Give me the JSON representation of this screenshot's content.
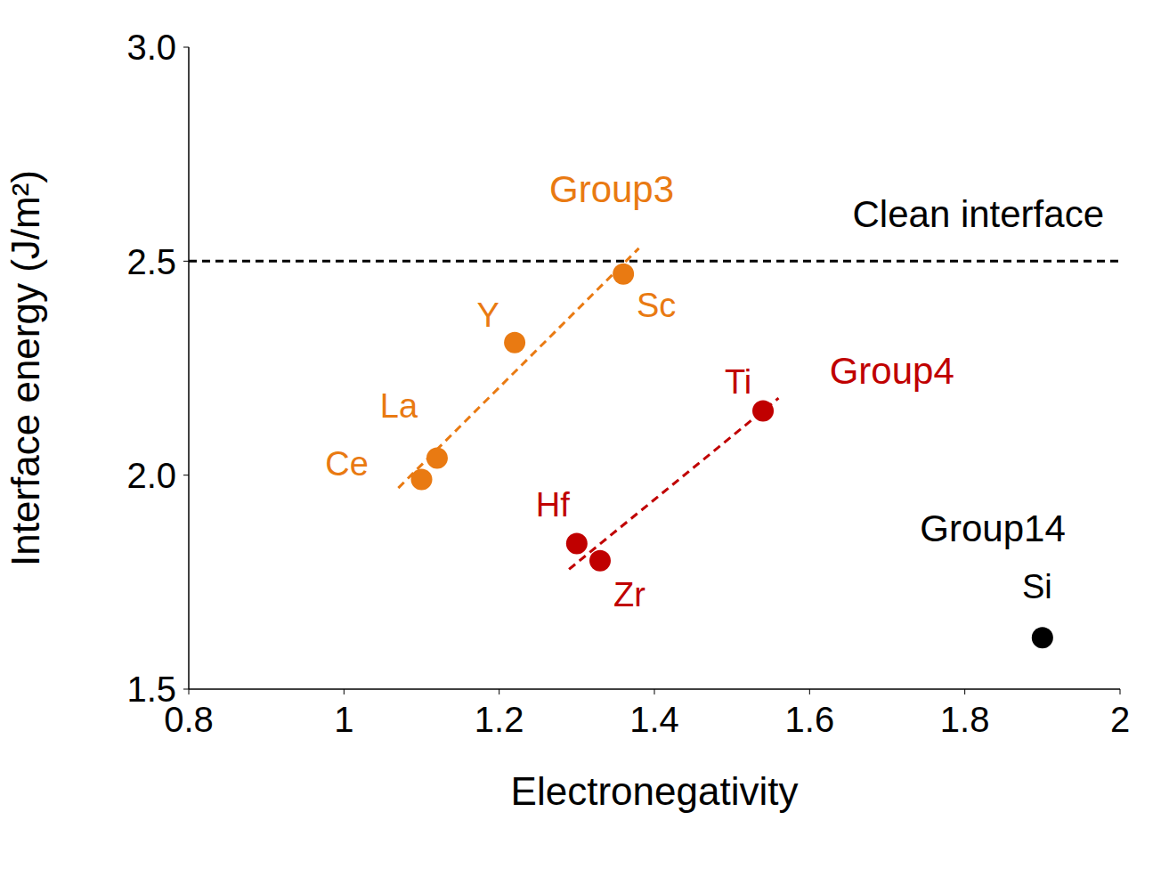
{
  "chart_data": {
    "type": "scatter",
    "x_label": "Electronegativity",
    "y_label": "Interface energy (J/m²)",
    "xlim": [
      0.8,
      2
    ],
    "xticks": [
      0.8,
      1,
      1.2,
      1.4,
      1.6,
      1.8,
      2
    ],
    "ylim": [
      1.5,
      3
    ],
    "yticks": [
      1.5,
      {
        "value": 2,
        "label": "2.0"
      },
      2.5,
      {
        "value": 3,
        "label": "3.0"
      }
    ],
    "grid": false,
    "reference_line": {
      "y": 2.5,
      "label": "Clean interface",
      "color": "#000000",
      "line_style": "dashed"
    },
    "series": [
      {
        "name": "Group3",
        "color": "#E97A12",
        "marker": "circle",
        "labels": [
          "Ce",
          "La",
          "Y",
          "Sc"
        ],
        "x": [
          1.1,
          1.12,
          1.22,
          1.36
        ],
        "values": [
          1.99,
          2.04,
          2.31,
          2.47
        ],
        "trend_line": {
          "x": [
            1.07,
            1.38
          ],
          "y": [
            1.97,
            2.53
          ],
          "line_style": "dashed"
        }
      },
      {
        "name": "Group4",
        "color": "#C00000",
        "marker": "circle",
        "labels": [
          "Hf",
          "Zr",
          "Ti"
        ],
        "x": [
          1.3,
          1.33,
          1.54
        ],
        "values": [
          1.84,
          1.8,
          2.15
        ],
        "trend_line": {
          "x": [
            1.29,
            1.56
          ],
          "y": [
            1.78,
            2.18
          ],
          "line_style": "dashed"
        }
      },
      {
        "name": "Group14",
        "color": "#000000",
        "marker": "circle",
        "labels": [
          "Si"
        ],
        "x": [
          1.9
        ],
        "values": [
          1.62
        ]
      }
    ]
  }
}
